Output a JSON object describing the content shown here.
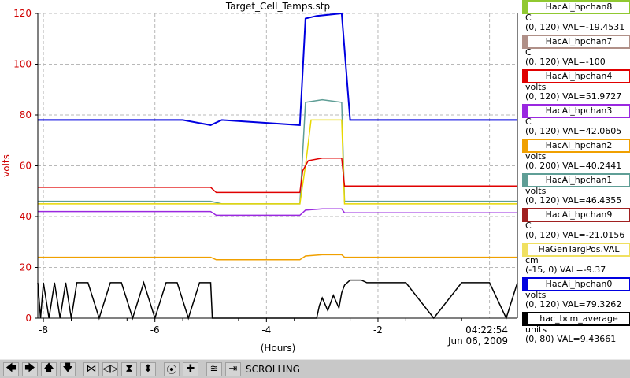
{
  "chart_data": {
    "type": "line",
    "title": "Target_Cell_Temps.stp",
    "ylabel": "volts",
    "xlabel": "(Hours)",
    "xlim": [
      -8.1,
      0.5
    ],
    "ylim": [
      0,
      120
    ],
    "x_ticks": [
      -8,
      -6,
      -4,
      -2
    ],
    "y_ticks": [
      0,
      20,
      40,
      60,
      80,
      100,
      120
    ],
    "timestamp": "04:22:54",
    "date": "Jun 06, 2009",
    "grid": true,
    "series": [
      {
        "color": "#0000e0",
        "x": [
          -8.1,
          -6.0,
          -5.5,
          -5.0,
          -4.8,
          -3.4,
          -3.3,
          -3.1,
          -2.65,
          -2.5,
          -1.0,
          0.5
        ],
        "y": [
          78,
          78,
          78,
          76,
          78,
          76,
          118,
          119,
          120,
          78,
          78,
          78
        ]
      },
      {
        "color": "#5f9e96",
        "x": [
          -8.1,
          -6.0,
          -5.0,
          -4.8,
          -3.4,
          -3.3,
          -3.0,
          -2.65,
          -2.6,
          0.5
        ],
        "y": [
          46,
          46,
          46,
          45,
          45,
          85,
          86,
          85,
          46,
          46
        ]
      },
      {
        "color": "#e8d800",
        "x": [
          -8.1,
          -5.0,
          -3.4,
          -3.3,
          -3.2,
          -2.65,
          -2.6,
          0.5
        ],
        "y": [
          45,
          45,
          45,
          60,
          78,
          78,
          45,
          45
        ]
      },
      {
        "color": "#e00000",
        "x": [
          -8.1,
          -5.0,
          -4.9,
          -3.4,
          -3.35,
          -3.25,
          -3.0,
          -2.65,
          -2.6,
          0.5
        ],
        "y": [
          51.5,
          51.5,
          49.5,
          49.5,
          58,
          62,
          63,
          63,
          52,
          52
        ]
      },
      {
        "color": "#9a28e0",
        "x": [
          -8.1,
          -5.0,
          -4.9,
          -3.4,
          -3.3,
          -3.0,
          -2.65,
          -2.6,
          0.5
        ],
        "y": [
          42,
          42,
          40.5,
          40.5,
          42.5,
          43,
          43,
          41.5,
          41.5
        ]
      },
      {
        "color": "#f0a000",
        "x": [
          -8.1,
          -5.0,
          -4.9,
          -3.4,
          -3.3,
          -3.0,
          -2.65,
          -2.6,
          0.5
        ],
        "y": [
          24,
          24,
          23,
          23,
          24.5,
          25,
          25,
          24,
          24
        ]
      },
      {
        "color": "#000000",
        "x": [
          -8.1,
          -8.05,
          -8.0,
          -7.9,
          -7.8,
          -7.7,
          -7.6,
          -7.5,
          -7.4,
          -7.2,
          -7.0,
          -6.8,
          -6.6,
          -6.4,
          -6.2,
          -6.0,
          -5.8,
          -5.6,
          -5.4,
          -5.2,
          -5.0,
          -4.97,
          -3.1,
          -3.05,
          -3.0,
          -2.9,
          -2.8,
          -2.7,
          -2.65,
          -2.6,
          -2.5,
          -2.3,
          -2.2,
          -2.1,
          -1.5,
          -1.0,
          -0.5,
          0.0,
          0.3,
          0.5
        ],
        "y": [
          14,
          0,
          14,
          0,
          14,
          0,
          14,
          0,
          14,
          14,
          0,
          14,
          14,
          0,
          14,
          0,
          14,
          14,
          0,
          14,
          14,
          0,
          0,
          5,
          8,
          3,
          9,
          4,
          10,
          13,
          15,
          15,
          14,
          14,
          14,
          0,
          14,
          14,
          0,
          14
        ]
      }
    ],
    "legend": [
      {
        "name": "HacAi_hpchan8",
        "unit": "C",
        "range": "(0, 120)",
        "value": "VAL=-19.4531",
        "color": "#90c830"
      },
      {
        "name": "HacAi_hpchan7",
        "unit": "C",
        "range": "(0, 120)",
        "value": "VAL=-100",
        "color": "#b09088"
      },
      {
        "name": "HacAi_hpchan4",
        "unit": "volts",
        "range": "(0, 120)",
        "value": "VAL=51.9727",
        "color": "#e00000"
      },
      {
        "name": "HacAi_hpchan3",
        "unit": "C",
        "range": "(0, 120)",
        "value": "VAL=42.0605",
        "color": "#9a28e0"
      },
      {
        "name": "HacAi_hpchan2",
        "unit": "volts",
        "range": "(0, 200)",
        "value": "VAL=40.2441",
        "color": "#f0a000"
      },
      {
        "name": "HacAi_hpchan1",
        "unit": "volts",
        "range": "(0, 120)",
        "value": "VAL=46.4355",
        "color": "#5f9e96"
      },
      {
        "name": "HacAi_hpchan9",
        "unit": "C",
        "range": "(0, 120)",
        "value": "VAL=-21.0156",
        "color": "#a02020"
      },
      {
        "name": "HaGenTargPos.VAL",
        "unit": "cm",
        "range": "(-15, 0)",
        "value": "VAL=-9.37",
        "color": "#f0e060"
      },
      {
        "name": "HacAi_hpchan0",
        "unit": "volts",
        "range": "(0, 120)",
        "value": "VAL=79.3262",
        "color": "#0000e0"
      },
      {
        "name": "hac_bcm_average",
        "unit": "units",
        "range": "(0, 80)",
        "value": "VAL=9.43661",
        "color": "#000000"
      }
    ]
  },
  "toolbar": {
    "buttons": [
      {
        "name": "scroll-left-button",
        "icon": "arrow-left-icon",
        "glyph": "🡄"
      },
      {
        "name": "scroll-right-button",
        "icon": "arrow-right-icon",
        "glyph": "🡆"
      },
      {
        "name": "scroll-up-button",
        "icon": "arrow-up-icon",
        "glyph": "🡅"
      },
      {
        "name": "scroll-down-button",
        "icon": "arrow-down-icon",
        "glyph": "🡇"
      },
      {
        "name": "zoom-in-x-button",
        "icon": "zoom-in-x-icon",
        "glyph": "⋈"
      },
      {
        "name": "zoom-out-x-button",
        "icon": "zoom-out-x-icon",
        "glyph": "◁▷"
      },
      {
        "name": "zoom-in-y-button",
        "icon": "zoom-in-y-icon",
        "glyph": "⧗"
      },
      {
        "name": "zoom-out-y-button",
        "icon": "zoom-out-y-icon",
        "glyph": "⬍"
      },
      {
        "name": "record-button",
        "icon": "circle-icon",
        "glyph": "⦿"
      },
      {
        "name": "add-button",
        "icon": "plus-icon",
        "glyph": "✚"
      },
      {
        "name": "autoscale-button",
        "icon": "autoscale-icon",
        "glyph": "≊"
      },
      {
        "name": "jump-end-button",
        "icon": "jump-end-icon",
        "glyph": "⇥"
      }
    ],
    "status": "SCROLLING"
  }
}
